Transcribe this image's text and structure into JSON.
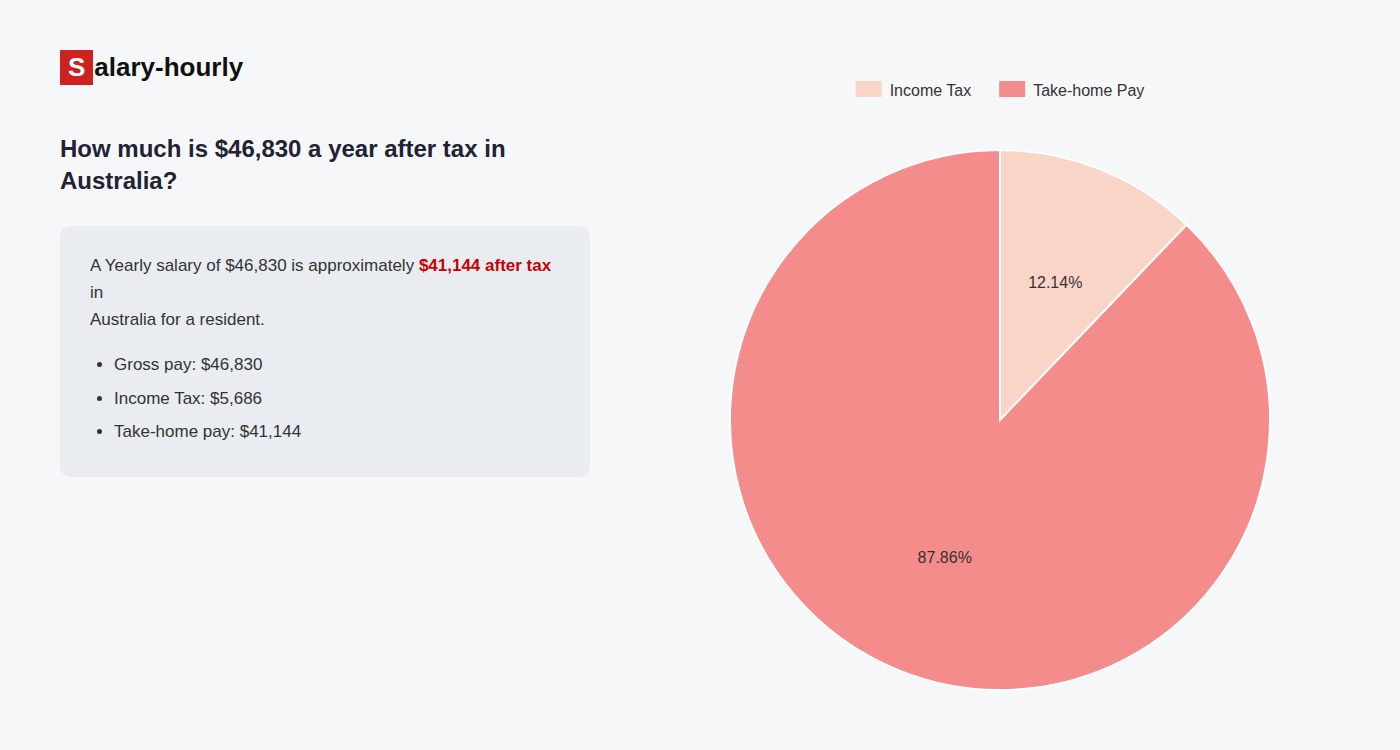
{
  "chart_data": {
    "type": "pie",
    "title": "How much is $46,830 a year after tax in Australia?",
    "categories": [
      "Income Tax",
      "Take-home Pay"
    ],
    "values": [
      12.14,
      87.86
    ],
    "value_labels": [
      "12.14%",
      "87.86%"
    ],
    "colors": [
      "#f9d5c8",
      "#f48c8c"
    ],
    "data_labels": true,
    "legend": "top",
    "annotations": [
      "S",
      "alary-hourly",
      "A Yearly salary of $46,830 is approximately ",
      "$41,144 after tax",
      " in",
      "Australia for a resident.",
      "Gross pay: $46,830",
      "Income Tax: $5,686",
      "Take-home pay: $41,144"
    ]
  }
}
